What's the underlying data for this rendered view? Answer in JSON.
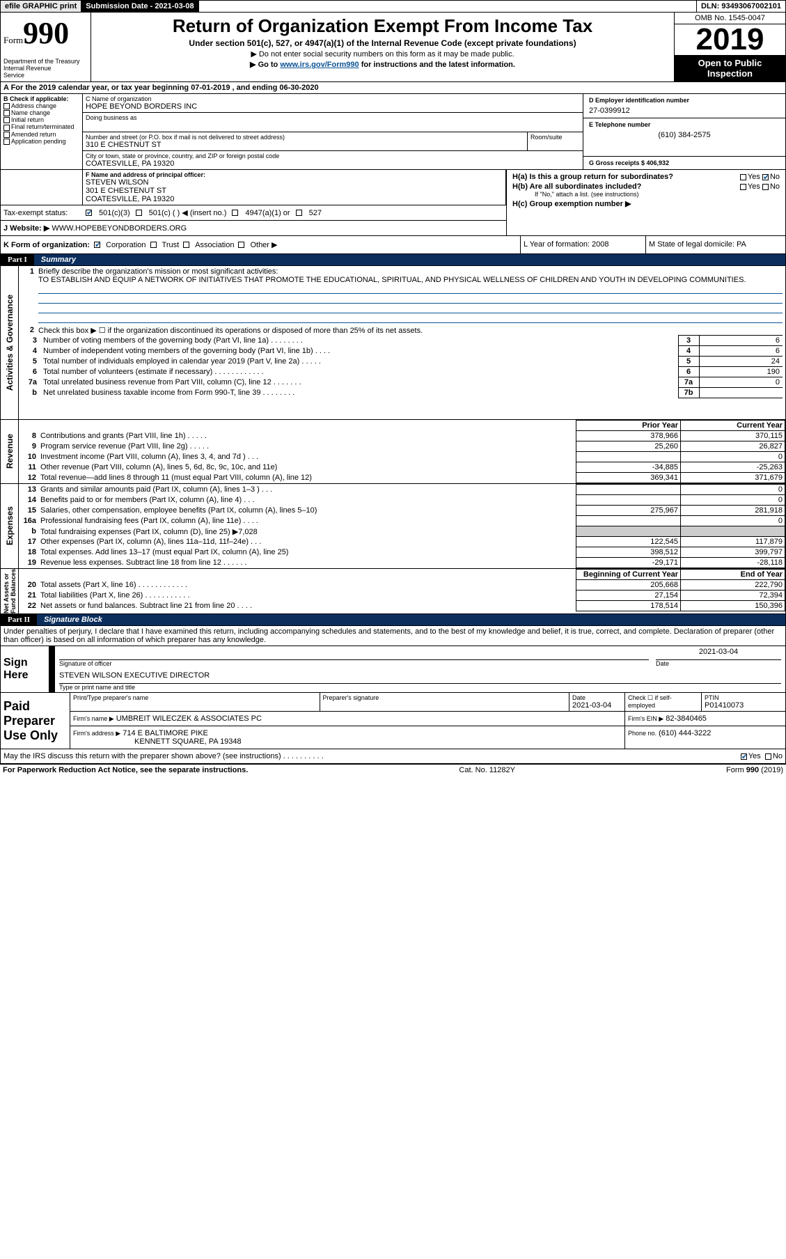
{
  "topbar": {
    "efile": "efile GRAPHIC print",
    "submission_label": "Submission Date - 2021-03-08",
    "dln_label": "DLN: 93493067002101"
  },
  "header": {
    "form_word": "Form",
    "form_num": "990",
    "dept": "Department of the Treasury\nInternal Revenue\nService",
    "title": "Return of Organization Exempt From Income Tax",
    "subtitle": "Under section 501(c), 527, or 4947(a)(1) of the Internal Revenue Code (except private foundations)",
    "note1": "▶ Do not enter social security numbers on this form as it may be made public.",
    "note2_pre": "▶ Go to ",
    "note2_link": "www.irs.gov/Form990",
    "note2_post": " for instructions and the latest information.",
    "omb": "OMB No. 1545-0047",
    "year": "2019",
    "open": "Open to Public\nInspection"
  },
  "lineA": "A For the 2019 calendar year, or tax year beginning 07-01-2019   , and ending 06-30-2020",
  "boxB": {
    "label": "B Check if applicable:",
    "opts": [
      "Address change",
      "Name change",
      "Initial return",
      "Final return/terminated",
      "Amended return",
      "Application pending"
    ]
  },
  "boxC": {
    "name_lbl": "C Name of organization",
    "name": "HOPE BEYOND BORDERS INC",
    "dba_lbl": "Doing business as",
    "addr_lbl": "Number and street (or P.O. box if mail is not delivered to street address)",
    "room_lbl": "Room/suite",
    "addr": "310 E CHESTNUT ST",
    "city_lbl": "City or town, state or province, country, and ZIP or foreign postal code",
    "city": "COATESVILLE, PA  19320"
  },
  "boxD": {
    "lbl": "D Employer identification number",
    "val": "27-0399912"
  },
  "boxE": {
    "lbl": "E Telephone number",
    "val": "(610) 384-2575"
  },
  "boxG": {
    "lbl": "G Gross receipts $ 406,932"
  },
  "boxF": {
    "lbl": "F  Name and address of principal officer:",
    "name": "STEVEN WILSON",
    "addr1": "301 E CHESTENUT ST",
    "addr2": "COATESVILLE, PA  19320"
  },
  "boxH": {
    "a": "H(a)  Is this a group return for subordinates?",
    "b": "H(b)  Are all subordinates included?",
    "b_note": "If \"No,\" attach a list. (see instructions)",
    "c": "H(c)  Group exemption number ▶",
    "yes": "Yes",
    "no": "No"
  },
  "taxexempt": {
    "lbl": "Tax-exempt status:",
    "o1": "501(c)(3)",
    "o2": "501(c) (  ) ◀ (insert no.)",
    "o3": "4947(a)(1) or",
    "o4": "527"
  },
  "boxJ": {
    "lbl": "J   Website: ▶",
    "val": "WWW.HOPEBEYONDBORDERS.ORG"
  },
  "boxK": {
    "lbl": "K Form of organization:",
    "o1": "Corporation",
    "o2": "Trust",
    "o3": "Association",
    "o4": "Other ▶"
  },
  "boxL": {
    "lbl": "L Year of formation: 2008"
  },
  "boxM": {
    "lbl": "M State of legal domicile: PA"
  },
  "part1": {
    "tag": "Part I",
    "title": "Summary",
    "l1_lbl": "Briefly describe the organization's mission or most significant activities:",
    "l1_txt": "TO ESTABLISH AND EQUIP A NETWORK OF INITIATIVES THAT PROMOTE THE EDUCATIONAL, SPIRITUAL, AND PHYSICAL WELLNESS OF CHILDREN AND YOUTH IN DEVELOPING COMMUNITIES.",
    "l2": "Check this box ▶ ☐  if the organization discontinued its operations or disposed of more than 25% of its net assets.",
    "tab_ag": "Activities & Governance",
    "tab_rev": "Revenue",
    "tab_exp": "Expenses",
    "tab_net": "Net Assets or\nFund Balances",
    "lines_ag": [
      {
        "n": "3",
        "t": "Number of voting members of the governing body (Part VI, line 1a)   .   .   .   .   .   .   .   .",
        "box": "3",
        "v": "6"
      },
      {
        "n": "4",
        "t": "Number of independent voting members of the governing body (Part VI, line 1b)   .   .   .   .",
        "box": "4",
        "v": "6"
      },
      {
        "n": "5",
        "t": "Total number of individuals employed in calendar year 2019 (Part V, line 2a)   .   .   .   .   .",
        "box": "5",
        "v": "24"
      },
      {
        "n": "6",
        "t": "Total number of volunteers (estimate if necessary)   .   .   .   .   .   .   .   .   .   .   .   .",
        "box": "6",
        "v": "190"
      },
      {
        "n": "7a",
        "t": "Total unrelated business revenue from Part VIII, column (C), line 12   .   .   .   .   .   .   .",
        "box": "7a",
        "v": "0"
      },
      {
        "n": "b",
        "t": "Net unrelated business taxable income from Form 990-T, line 39   .   .   .   .   .   .   .   .",
        "box": "7b",
        "v": ""
      }
    ],
    "colhdr_py": "Prior Year",
    "colhdr_cy": "Current Year",
    "lines_rev": [
      {
        "n": "8",
        "t": "Contributions and grants (Part VIII, line 1h)   .   .   .   .   .",
        "py": "378,966",
        "cy": "370,115"
      },
      {
        "n": "9",
        "t": "Program service revenue (Part VIII, line 2g)   .   .   .   .   .",
        "py": "25,260",
        "cy": "26,827"
      },
      {
        "n": "10",
        "t": "Investment income (Part VIII, column (A), lines 3, 4, and 7d )   .   .   .",
        "py": "",
        "cy": "0"
      },
      {
        "n": "11",
        "t": "Other revenue (Part VIII, column (A), lines 5, 6d, 8c, 9c, 10c, and 11e)",
        "py": "-34,885",
        "cy": "-25,263"
      },
      {
        "n": "12",
        "t": "Total revenue—add lines 8 through 11 (must equal Part VIII, column (A), line 12)",
        "py": "369,341",
        "cy": "371,679"
      }
    ],
    "lines_exp": [
      {
        "n": "13",
        "t": "Grants and similar amounts paid (Part IX, column (A), lines 1–3 )   .   .   .",
        "py": "",
        "cy": "0"
      },
      {
        "n": "14",
        "t": "Benefits paid to or for members (Part IX, column (A), line 4)   .   .   .",
        "py": "",
        "cy": "0"
      },
      {
        "n": "15",
        "t": "Salaries, other compensation, employee benefits (Part IX, column (A), lines 5–10)",
        "py": "275,967",
        "cy": "281,918"
      },
      {
        "n": "16a",
        "t": "Professional fundraising fees (Part IX, column (A), line 11e)   .   .   .   .",
        "py": "",
        "cy": "0"
      },
      {
        "n": "b",
        "t": "Total fundraising expenses (Part IX, column (D), line 25) ▶7,028",
        "py": "SHADE",
        "cy": "SHADE"
      },
      {
        "n": "17",
        "t": "Other expenses (Part IX, column (A), lines 11a–11d, 11f–24e)   .   .   .",
        "py": "122,545",
        "cy": "117,879"
      },
      {
        "n": "18",
        "t": "Total expenses. Add lines 13–17 (must equal Part IX, column (A), line 25)",
        "py": "398,512",
        "cy": "399,797"
      },
      {
        "n": "19",
        "t": "Revenue less expenses. Subtract line 18 from line 12   .   .   .   .   .   .",
        "py": "-29,171",
        "cy": "-28,118"
      }
    ],
    "colhdr_by": "Beginning of Current Year",
    "colhdr_ey": "End of Year",
    "lines_net": [
      {
        "n": "20",
        "t": "Total assets (Part X, line 16)   .   .   .   .   .   .   .   .   .   .   .   .",
        "py": "205,668",
        "cy": "222,790"
      },
      {
        "n": "21",
        "t": "Total liabilities (Part X, line 26)   .   .   .   .   .   .   .   .   .   .   .",
        "py": "27,154",
        "cy": "72,394"
      },
      {
        "n": "22",
        "t": "Net assets or fund balances. Subtract line 21 from line 20   .   .   .   .",
        "py": "178,514",
        "cy": "150,396"
      }
    ]
  },
  "part2": {
    "tag": "Part II",
    "title": "Signature Block",
    "decl": "Under penalties of perjury, I declare that I have examined this return, including accompanying schedules and statements, and to the best of my knowledge and belief, it is true, correct, and complete. Declaration of preparer (other than officer) is based on all information of which preparer has any knowledge.",
    "sign_here": "Sign\nHere",
    "sig_of_officer": "Signature of officer",
    "sig_date": "Date",
    "sig_date_val": "2021-03-04",
    "officer_name": "STEVEN WILSON  EXECUTIVE DIRECTOR",
    "type_name": "Type or print name and title",
    "paid": "Paid\nPreparer\nUse Only",
    "pp_name_lbl": "Print/Type preparer's name",
    "pp_sig_lbl": "Preparer's signature",
    "pp_date_lbl": "Date",
    "pp_date_val": "2021-03-04",
    "pp_check_lbl": "Check ☐ if self-employed",
    "ptin_lbl": "PTIN",
    "ptin_val": "P01410073",
    "firm_name_lbl": "Firm's name    ▶",
    "firm_name": "UMBREIT WILECZEK & ASSOCIATES PC",
    "firm_ein_lbl": "Firm's EIN ▶",
    "firm_ein": "82-3840465",
    "firm_addr_lbl": "Firm's address ▶",
    "firm_addr1": "714 E BALTIMORE PIKE",
    "firm_addr2": "KENNETT SQUARE, PA  19348",
    "phone_lbl": "Phone no.",
    "phone_val": "(610) 444-3222",
    "discuss": "May the IRS discuss this return with the preparer shown above? (see instructions)   .   .   .   .   .   .   .   .   .   .",
    "yes": "Yes",
    "no": "No"
  },
  "footer": {
    "left": "For Paperwork Reduction Act Notice, see the separate instructions.",
    "mid": "Cat. No. 11282Y",
    "right": "Form 990 (2019)"
  },
  "colors": {
    "blue": "#0b5394",
    "darkblue": "#0b2e5c",
    "shade": "#cccccc"
  }
}
